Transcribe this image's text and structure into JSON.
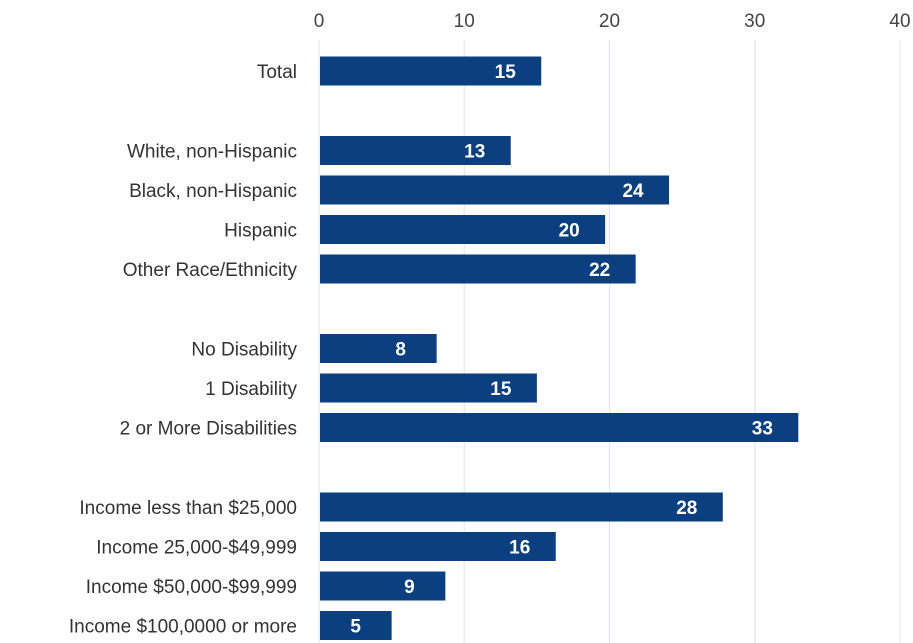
{
  "chart_data": {
    "type": "bar",
    "orientation": "horizontal",
    "title": "",
    "xlabel": "",
    "ylabel": "",
    "xlim": [
      0,
      40
    ],
    "ticks": [
      0,
      10,
      20,
      30,
      40
    ],
    "tick_labels": [
      "0",
      "10",
      "20",
      "30",
      "40"
    ],
    "grid": true,
    "axis_position": "top",
    "bar_color": "#0b3f7f",
    "categories": [
      "Total",
      "White, non-Hispanic",
      "Black, non-Hispanic",
      "Hispanic",
      "Other Race/Ethnicity",
      "No Disability",
      "1 Disability",
      "2 or More Disabilities",
      "Income less than $25,000",
      "Income 25,000-$49,999",
      "Income $50,000-$99,999",
      "Income $100,0000 or more"
    ],
    "groups": [
      [
        0
      ],
      [
        1,
        2,
        3,
        4
      ],
      [
        5,
        6,
        7
      ],
      [
        8,
        9,
        10,
        11
      ]
    ],
    "values": [
      15.3,
      13.2,
      24.1,
      19.7,
      21.8,
      8.1,
      15.0,
      33.0,
      27.8,
      16.3,
      8.7,
      5.0
    ],
    "data_labels": [
      "15",
      "13",
      "24",
      "20",
      "22",
      "8",
      "15",
      "33",
      "28",
      "16",
      "9",
      "5"
    ]
  }
}
